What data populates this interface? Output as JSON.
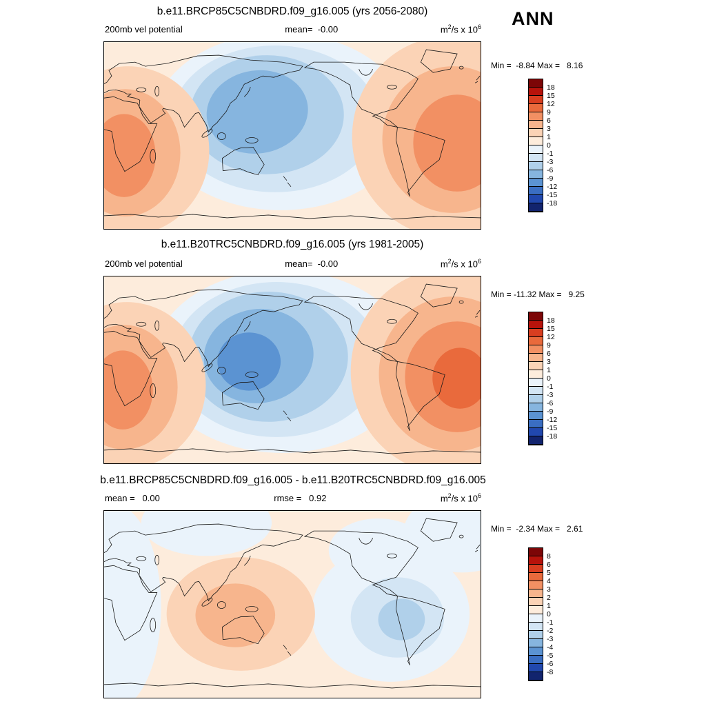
{
  "header": {
    "season": "ANN"
  },
  "units": {
    "m": "m",
    "sq": "2",
    "per": "/s x 10",
    "six": "6"
  },
  "panels": [
    {
      "title": "b.e11.BRCP85C5CNBDRD.f09_g16.005 (yrs 2056-2080)",
      "var_label": "200mb vel potential",
      "mean": "mean=  -0.00",
      "minmax": "Min =  -8.84 Max =   8.16"
    },
    {
      "title": "b.e11.B20TRC5CNBDRD.f09_g16.005 (yrs 1981-2005)",
      "var_label": "200mb vel potential",
      "mean": "mean=  -0.00",
      "minmax": "Min = -11.32 Max =   9.25"
    },
    {
      "title": "b.e11.BRCP85C5CNBDRD.f09_g16.005 - b.e11.B20TRC5CNBDRD.f09_g16.005",
      "mean": "mean =   0.00",
      "rmse": "rmse =   0.92",
      "minmax": "Min =  -2.34 Max =   2.61"
    }
  ],
  "colorbar_main": {
    "labels": [
      18,
      15,
      12,
      9,
      6,
      3,
      1,
      0,
      -1,
      -3,
      -6,
      -9,
      -12,
      -15,
      -18
    ],
    "colors": [
      "#7c0607",
      "#b7130b",
      "#d93e20",
      "#e96a3c",
      "#f29063",
      "#f7b58d",
      "#fbd3b6",
      "#fdecdc",
      "#eaf3fb",
      "#d3e5f4",
      "#b0d0ea",
      "#86b5df",
      "#5b93d2",
      "#3a6ec2",
      "#2148ae",
      "#12246e"
    ]
  },
  "colorbar_diff": {
    "labels": [
      8,
      6,
      5,
      4,
      3,
      2,
      1,
      0,
      -1,
      -2,
      -3,
      -4,
      -5,
      -6,
      -8
    ],
    "colors": [
      "#7c0607",
      "#b7130b",
      "#d93e20",
      "#e96a3c",
      "#f29063",
      "#f7b58d",
      "#fbd3b6",
      "#fdecdc",
      "#eaf3fb",
      "#d3e5f4",
      "#b0d0ea",
      "#86b5df",
      "#5b93d2",
      "#3a6ec2",
      "#2148ae",
      "#12246e"
    ]
  },
  "chart_data": [
    {
      "type": "heatmap",
      "subtype": "filled-contour global map",
      "title": "b.e11.BRCP85C5CNBDRD.f09_g16.005 (yrs 2056-2080)",
      "variable": "200mb vel potential",
      "season": "ANN",
      "units": "m2/s x 10^6",
      "mean": -0.0,
      "min": -8.84,
      "max": 8.16,
      "contour_levels": [
        -18,
        -15,
        -12,
        -9,
        -6,
        -3,
        -1,
        0,
        1,
        3,
        6,
        9,
        12,
        15,
        18
      ],
      "palette": "blue-white-red diverging",
      "pattern": "negative (blue) center over Indo-West Pacific; positive (orange) centers over Africa/Atlantic sector wrapping map edges"
    },
    {
      "type": "heatmap",
      "subtype": "filled-contour global map",
      "title": "b.e11.B20TRC5CNBDRD.f09_g16.005 (yrs 1981-2005)",
      "variable": "200mb vel potential",
      "season": "ANN",
      "units": "m2/s x 10^6",
      "mean": -0.0,
      "min": -11.32,
      "max": 9.25,
      "contour_levels": [
        -18,
        -15,
        -12,
        -9,
        -6,
        -3,
        -1,
        0,
        1,
        3,
        6,
        9,
        12,
        15,
        18
      ],
      "palette": "blue-white-red diverging",
      "pattern": "stronger negative center over Maritime Continent; stronger positive center over tropical Atlantic/South America sector"
    },
    {
      "type": "heatmap",
      "subtype": "filled-contour global difference map",
      "title": "b.e11.BRCP85C5CNBDRD.f09_g16.005 - b.e11.B20TRC5CNBDRD.f09_g16.005",
      "season": "ANN",
      "units": "m2/s x 10^6",
      "mean": 0.0,
      "rmse": 0.92,
      "min": -2.34,
      "max": 2.61,
      "contour_levels": [
        -8,
        -6,
        -5,
        -4,
        -3,
        -2,
        -1,
        0,
        1,
        2,
        3,
        4,
        5,
        6,
        8
      ],
      "palette": "blue-white-red diverging",
      "pattern": "weak positive anomaly over Indian Ocean/Australia; weak negative anomaly over eastern Pacific and Atlantic edges"
    }
  ]
}
